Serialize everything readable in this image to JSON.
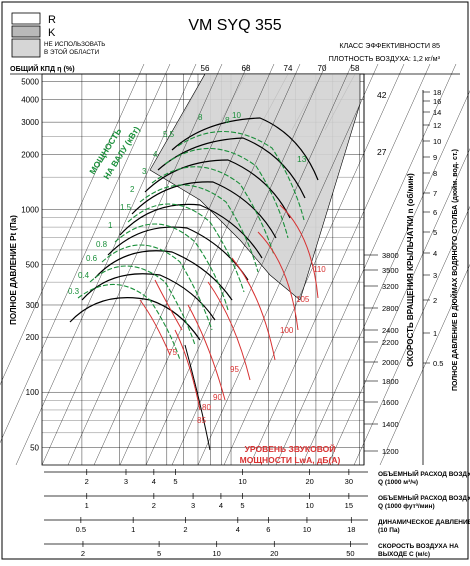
{
  "header": {
    "title": "VM SYQ 355",
    "efficiency_class": "КЛАСС ЭФФЕКТИВНОСТИ 85",
    "air_density": "ПЛОТНОСТЬ ВОЗДУХА: 1,2 кг/м³",
    "legend": [
      {
        "key": "r",
        "label": "R",
        "fill": "#ffffff"
      },
      {
        "key": "k",
        "label": "K",
        "fill": "#b9b9b9"
      },
      {
        "key": "na",
        "label": "НЕ ИСПОЛЬЗОВАТЬ\nВ ЭТОЙ ОБЛАСТИ",
        "fill": "#d6d6d6"
      }
    ]
  },
  "chart_data": {
    "type": "line",
    "title": "VM SYQ 355",
    "subtitle": "КЛАСС ЭФФЕКТИВНОСТИ 85",
    "colors": {
      "accent": "#1a8f3a",
      "sound": "#d83232",
      "curve": "#000000",
      "zone": "#d3d3d3"
    },
    "efficiency_label": "ОБЩИЙ КПД η (%)",
    "efficiency_ticks": [
      "56",
      "68",
      "74",
      "70",
      "58"
    ],
    "blade_angles": [
      "42",
      "27",
      "13",
      "8"
    ],
    "left_axis": {
      "label": "ПОЛНОЕ ДАВЛЕНИЕ Pt (Па)",
      "scale": "log",
      "range": [
        40,
        5500
      ],
      "ticks": [
        50,
        100,
        200,
        300,
        500,
        1000,
        2000,
        3000,
        4000,
        5000
      ],
      "tick_labels": [
        "50",
        "100",
        "200",
        "300",
        "500",
        "1000",
        "2000",
        "3000",
        "4000",
        "5000"
      ]
    },
    "right_speed_axis": {
      "label": "СКОРОСТЬ ВРАЩЕНИЯ КРЫЛЬЧАТКИ n (об/мин)",
      "ticks": [
        1200,
        1400,
        1600,
        1800,
        2000,
        2200,
        2400,
        2800,
        3200,
        3500,
        3800
      ],
      "tick_labels": [
        "1200",
        "1400",
        "1600",
        "1800",
        "2000",
        "2200",
        "2400",
        "2800",
        "3200",
        "3500",
        "3800"
      ]
    },
    "right_water_axis": {
      "label": "ПОЛНОЕ ДАВЛЕНИЕ В ДЮЙМАХ ВОДЯНОГО СТОЛБА (дюйм. вод. ст.)",
      "ticks": [
        0.5,
        1,
        2,
        3,
        4,
        5,
        6,
        7,
        8,
        9,
        10,
        12,
        14,
        16,
        18
      ],
      "tick_labels": [
        "0.5",
        "1",
        "2",
        "3",
        "4",
        "5",
        "6",
        "7",
        "8",
        "9",
        "10",
        "12",
        "14",
        "16",
        "18"
      ]
    },
    "power_label": "МОЩНОСТЬ НА ВАЛУ (кВт)",
    "power_values": [
      "10",
      "8",
      "5.5",
      "4",
      "3",
      "2",
      "1.5",
      "1",
      "0.8",
      "0.6",
      "0.4",
      "0.3"
    ],
    "sound_label": "УРОВЕНЬ ЗВУКОВОЙ МОЩНОСТИ LwA, дБ(A)",
    "sound_values": [
      "110",
      "105",
      "100",
      "95",
      "90",
      "85",
      "80",
      "75"
    ],
    "bottom_scales": [
      {
        "label": "ОБЪЕМНЫЙ РАСХОД ВОЗДУХА Q (1000 м³/ч)",
        "ticks": [
          2,
          3,
          4,
          5,
          10,
          20,
          30
        ],
        "tick_labels": [
          "2",
          "3",
          "4",
          "5",
          "10",
          "20",
          "30"
        ]
      },
      {
        "label": "ОБЪЕМНЫЙ РАСХОД ВОЗДУХА Q (1000 фут³/мин)",
        "ticks": [
          1,
          2,
          3,
          4,
          5,
          10,
          15
        ],
        "tick_labels": [
          "1",
          "2",
          "3",
          "4",
          "5",
          "10",
          "15"
        ]
      },
      {
        "label": "ДИНАМИЧЕСКОЕ ДАВЛЕНИЕ Pd (10 Па)",
        "ticks": [
          0.5,
          1,
          2,
          4,
          6,
          10,
          18
        ],
        "tick_labels": [
          "0.5",
          "1",
          "2",
          "4",
          "6",
          "10",
          "18"
        ]
      },
      {
        "label": "СКОРОСТЬ ВОЗДУХА НА ВЫХОДЕ C (м/с)",
        "ticks": [
          2,
          5,
          10,
          20,
          50
        ],
        "tick_labels": [
          "2",
          "5",
          "10",
          "20",
          "50"
        ]
      }
    ]
  }
}
